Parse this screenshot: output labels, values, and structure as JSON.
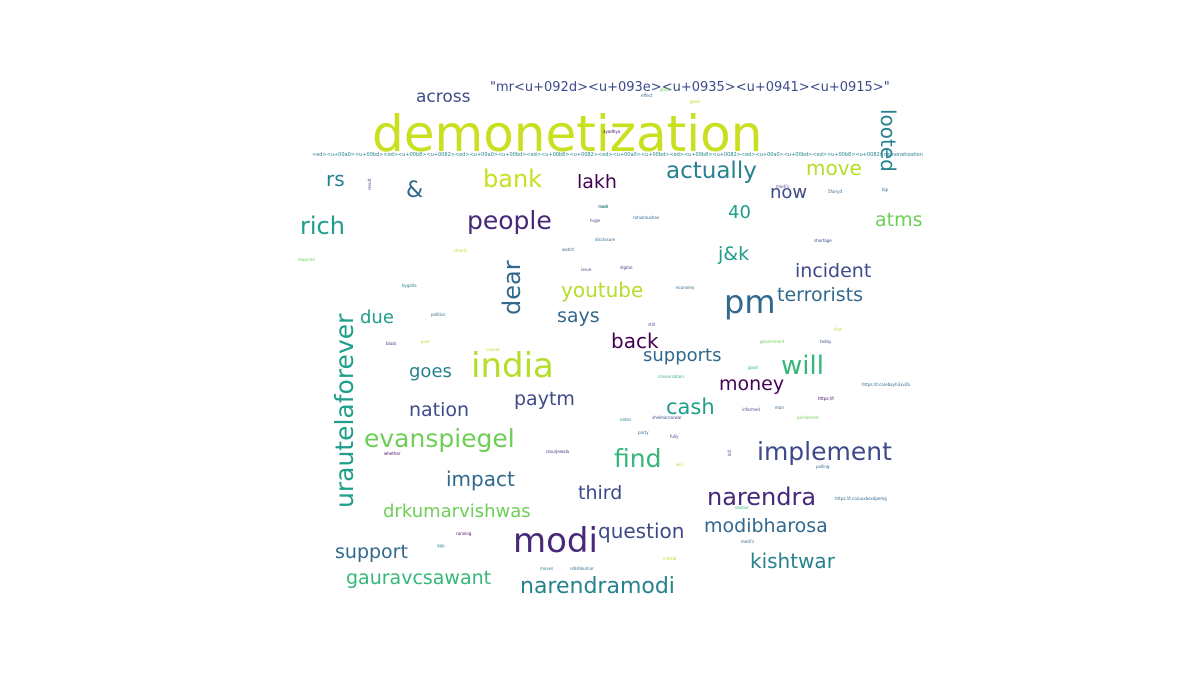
{
  "colors": {
    "background": "#ffffff",
    "palette": [
      "#440154",
      "#482878",
      "#3e4a89",
      "#31688e",
      "#26828e",
      "#1f9e89",
      "#35b779",
      "#6ece58",
      "#b5de2b",
      "#c8e020"
    ]
  },
  "words": [
    {
      "text": "demonetization",
      "size": 50,
      "weight": 400
    },
    {
      "text": "\"mr<u+092d><u+093e><u+0935><u+0941><u+0915>\"",
      "size": 13
    },
    {
      "text": "across",
      "size": 17
    },
    {
      "text": "looted",
      "size": 20
    },
    {
      "text": "actually",
      "size": 23
    },
    {
      "text": "move",
      "size": 20
    },
    {
      "text": "rs",
      "size": 20
    },
    {
      "text": "&",
      "size": 22
    },
    {
      "text": "bank",
      "size": 24
    },
    {
      "text": "lakh",
      "size": 19
    },
    {
      "text": "now",
      "size": 18
    },
    {
      "text": "40",
      "size": 18
    },
    {
      "text": "atms",
      "size": 19
    },
    {
      "text": "rich",
      "size": 24
    },
    {
      "text": "people",
      "size": 25
    },
    {
      "text": "dear",
      "size": 24
    },
    {
      "text": "j&k",
      "size": 19
    },
    {
      "text": "incident",
      "size": 19
    },
    {
      "text": "pm",
      "size": 32
    },
    {
      "text": "terrorists",
      "size": 19
    },
    {
      "text": "urautelaforever",
      "size": 25
    },
    {
      "text": "youtube",
      "size": 20
    },
    {
      "text": "says",
      "size": 19
    },
    {
      "text": "due",
      "size": 18
    },
    {
      "text": "back",
      "size": 20
    },
    {
      "text": "supports",
      "size": 18
    },
    {
      "text": "india",
      "size": 34
    },
    {
      "text": "will",
      "size": 26
    },
    {
      "text": "goes",
      "size": 18
    },
    {
      "text": "money",
      "size": 19
    },
    {
      "text": "paytm",
      "size": 19
    },
    {
      "text": "nation",
      "size": 19
    },
    {
      "text": "cash",
      "size": 21
    },
    {
      "text": "evanspiegel",
      "size": 25
    },
    {
      "text": "find",
      "size": 25
    },
    {
      "text": "implement",
      "size": 25
    },
    {
      "text": "impact",
      "size": 20
    },
    {
      "text": "third",
      "size": 19
    },
    {
      "text": "narendra",
      "size": 24
    },
    {
      "text": "drkumarvishwas",
      "size": 18
    },
    {
      "text": "question",
      "size": 20
    },
    {
      "text": "modibharosa",
      "size": 19
    },
    {
      "text": "modi",
      "size": 34
    },
    {
      "text": "support",
      "size": 19
    },
    {
      "text": "kishtwar",
      "size": 20
    },
    {
      "text": "gauravcsawant",
      "size": 19
    },
    {
      "text": "narendramodi",
      "size": 22
    },
    {
      "text": "<ed><u+00a0><u+00bd><ed><u+00b8><u+0082><ed><u+00a0><u+00bd><ed><u+00b8><u+0082><ed><u+00a0><u+00bd><ed><u+00b8><u+0082><ed><u+00a0><u+00bd><ed><u+00b8><u+0082>demonetization",
      "size": 5
    },
    {
      "text": "result",
      "size": 4
    },
    {
      "text": "modi's",
      "size": 4
    },
    {
      "text": "bjp",
      "size": 4
    },
    {
      "text": "5fariyd",
      "size": 4
    },
    {
      "text": "ayodhya",
      "size": 4
    },
    {
      "text": "rahulroushan",
      "size": 4
    },
    {
      "text": "huge",
      "size": 4
    },
    {
      "text": "clearly",
      "size": 4
    },
    {
      "text": "watch",
      "size": 4
    },
    {
      "text": "disclosure",
      "size": 4
    },
    {
      "text": "shortage",
      "size": 4
    },
    {
      "text": "required",
      "size": 4
    },
    {
      "text": "issue",
      "size": 4
    },
    {
      "text": "digital",
      "size": 4
    },
    {
      "text": "economy",
      "size": 4
    },
    {
      "text": "bygolla",
      "size": 4
    },
    {
      "text": "politics",
      "size": 4
    },
    {
      "text": "still",
      "size": 4
    },
    {
      "text": "black",
      "size": 4
    },
    {
      "text": "poor",
      "size": 4
    },
    {
      "text": "government",
      "size": 4
    },
    {
      "text": "today",
      "size": 4
    },
    {
      "text": "first",
      "size": 4
    },
    {
      "text": "good",
      "size": 4
    },
    {
      "text": "cannot",
      "size": 4
    },
    {
      "text": "conversation",
      "size": 4
    },
    {
      "text": "https://t.co/ebayh3xv2b",
      "size": 4
    },
    {
      "text": "https://t",
      "size": 4
    },
    {
      "text": "informed",
      "size": 4
    },
    {
      "text": "man",
      "size": 4
    },
    {
      "text": "parliament",
      "size": 4
    },
    {
      "text": "notes",
      "size": 4
    },
    {
      "text": "shekharnarwar",
      "size": 4
    },
    {
      "text": "party",
      "size": 4
    },
    {
      "text": "fully",
      "size": 4
    },
    {
      "text": "whether",
      "size": 4
    },
    {
      "text": "rosurjewala",
      "size": 4
    },
    {
      "text": "bill",
      "size": 4
    },
    {
      "text": "polling",
      "size": 4
    },
    {
      "text": "https://t.co/uuxboxdpemg",
      "size": 4
    },
    {
      "text": "sooner",
      "size": 4
    },
    {
      "text": "app",
      "size": 4
    },
    {
      "text": "running",
      "size": 4
    },
    {
      "text": "modi's",
      "size": 4
    },
    {
      "text": "critical",
      "size": 4
    },
    {
      "text": "moves",
      "size": 4
    },
    {
      "text": "nitishkumar",
      "size": 4
    },
    {
      "text": "effect",
      "size": 4
    },
    {
      "text": "great",
      "size": 4
    },
    {
      "text": "good",
      "size": 4
    },
    {
      "text": "modi",
      "size": 4
    },
    {
      "text": "new",
      "size": 4
    },
    {
      "text": "win",
      "size": 4
    }
  ]
}
